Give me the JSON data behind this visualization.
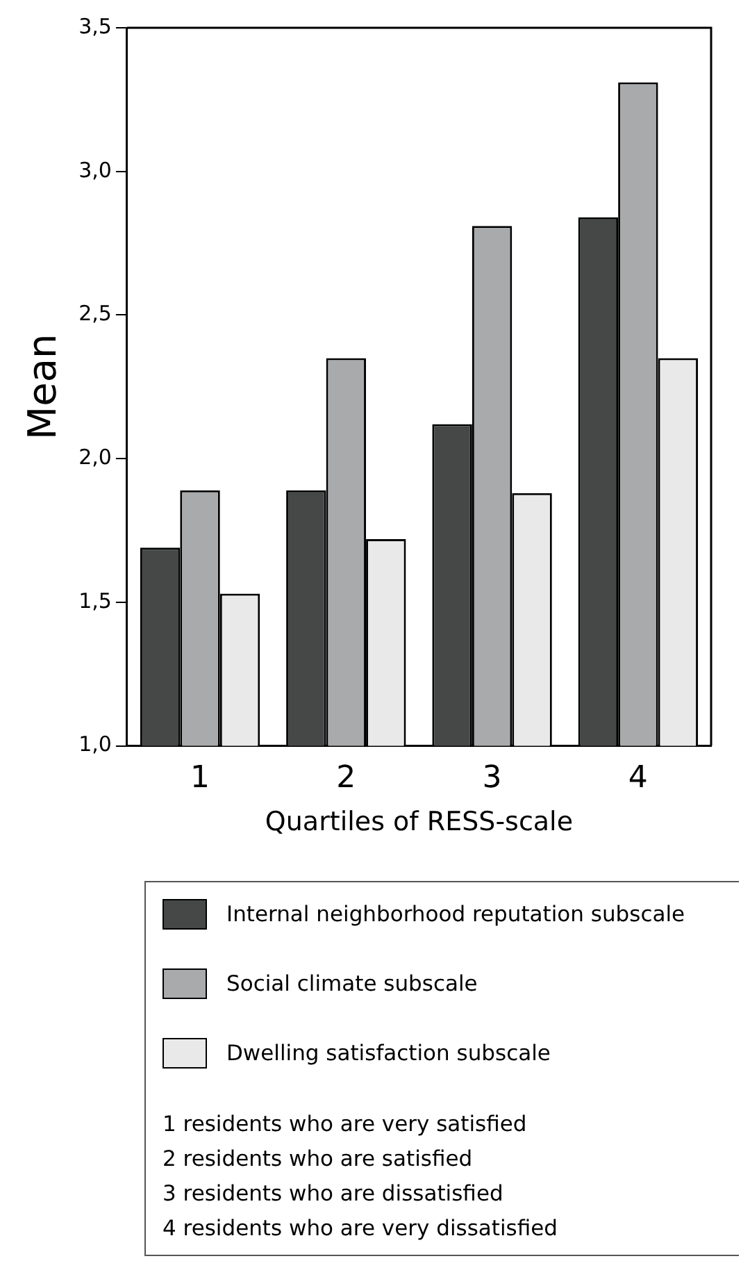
{
  "chart_data": {
    "type": "bar",
    "xlabel": "Quartiles of RESS-scale",
    "ylabel": "Mean",
    "categories": [
      "1",
      "2",
      "3",
      "4"
    ],
    "series": [
      {
        "name": "Internal neighborhood reputation subscale",
        "color": "#464848",
        "values": [
          1.69,
          1.89,
          2.12,
          2.84
        ]
      },
      {
        "name": "Social climate subscale",
        "color": "#a9aaac",
        "values": [
          1.89,
          2.35,
          2.81,
          3.31
        ]
      },
      {
        "name": "Dwelling satisfaction subscale",
        "color": "#e9e9e9",
        "values": [
          1.53,
          1.72,
          1.88,
          2.35
        ]
      }
    ],
    "ylim": [
      1.0,
      3.5
    ],
    "yticks": [
      {
        "value": 1.0,
        "label": "1,0"
      },
      {
        "value": 1.5,
        "label": "1,5"
      },
      {
        "value": 2.0,
        "label": "2,0"
      },
      {
        "value": 2.5,
        "label": "2,5"
      },
      {
        "value": 3.0,
        "label": "3,0"
      },
      {
        "value": 3.5,
        "label": "3,5"
      }
    ],
    "grid": false,
    "legend": "bottom",
    "annotations": [
      "1 residents who are very satisfied",
      "2 residents who are satisfied",
      "3 residents who are dissatisfied",
      "4 residents who are very dissatisfied"
    ]
  }
}
